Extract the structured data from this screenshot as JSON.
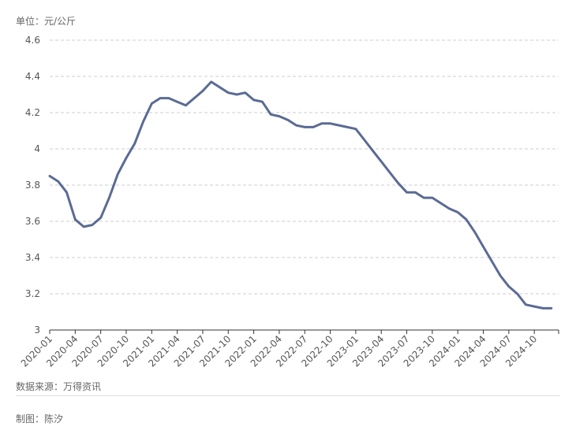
{
  "header": {
    "unit_label": "单位：元/公斤"
  },
  "footer": {
    "source": "数据来源：万得资讯",
    "credit": "制图：陈汐"
  },
  "colors": {
    "line": "#5a6b94",
    "grid": "#cccccc",
    "axis": "#333333"
  },
  "chart_data": {
    "type": "line",
    "title": "",
    "xlabel": "",
    "ylabel": "",
    "ylim": [
      3,
      4.6
    ],
    "y_ticks": [
      3,
      3.2,
      3.4,
      3.6,
      3.8,
      4,
      4.2,
      4.4,
      4.6
    ],
    "y_tick_labels": [
      "3",
      "3.2",
      "3.4",
      "3.6",
      "3.8",
      "4",
      "4.2",
      "4.4",
      "4.6"
    ],
    "x_tick_labels": [
      "2020-01",
      "2020-04",
      "2020-07",
      "2020-10",
      "2021-01",
      "2021-04",
      "2021-07",
      "2021-10",
      "2022-01",
      "2022-04",
      "2022-07",
      "2022-10",
      "2023-01",
      "2023-04",
      "2023-07",
      "2023-10",
      "2024-01",
      "2024-04",
      "2024-07",
      "2024-10"
    ],
    "grid": true,
    "legend": "none",
    "x": [
      "2020-01",
      "2020-02",
      "2020-03",
      "2020-04",
      "2020-05",
      "2020-06",
      "2020-07",
      "2020-08",
      "2020-09",
      "2020-10",
      "2020-11",
      "2020-12",
      "2021-01",
      "2021-02",
      "2021-03",
      "2021-04",
      "2021-05",
      "2021-06",
      "2021-07",
      "2021-08",
      "2021-09",
      "2021-10",
      "2021-11",
      "2021-12",
      "2022-01",
      "2022-02",
      "2022-03",
      "2022-04",
      "2022-05",
      "2022-06",
      "2022-07",
      "2022-08",
      "2022-09",
      "2022-10",
      "2022-11",
      "2022-12",
      "2023-01",
      "2023-02",
      "2023-03",
      "2023-04",
      "2023-05",
      "2023-06",
      "2023-07",
      "2023-08",
      "2023-09",
      "2023-10",
      "2023-11",
      "2023-12",
      "2024-01",
      "2024-02",
      "2024-03",
      "2024-04",
      "2024-05",
      "2024-06",
      "2024-07",
      "2024-08",
      "2024-09",
      "2024-10",
      "2024-11",
      "2024-12"
    ],
    "series": [
      {
        "values": [
          3.85,
          3.82,
          3.76,
          3.61,
          3.57,
          3.58,
          3.62,
          3.73,
          3.86,
          3.95,
          4.03,
          4.15,
          4.25,
          4.28,
          4.28,
          4.26,
          4.24,
          4.28,
          4.32,
          4.37,
          4.34,
          4.31,
          4.3,
          4.31,
          4.27,
          4.26,
          4.19,
          4.18,
          4.16,
          4.13,
          4.12,
          4.12,
          4.14,
          4.14,
          4.13,
          4.12,
          4.11,
          4.05,
          3.99,
          3.93,
          3.87,
          3.81,
          3.76,
          3.76,
          3.73,
          3.73,
          3.7,
          3.67,
          3.65,
          3.61,
          3.54,
          3.46,
          3.38,
          3.3,
          3.24,
          3.2,
          3.14,
          3.13,
          3.12,
          3.12
        ]
      }
    ]
  }
}
